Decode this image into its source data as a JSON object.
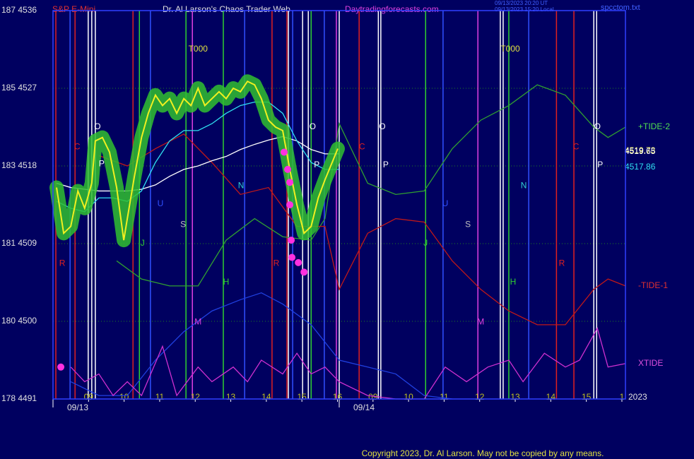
{
  "chart_data": {
    "type": "line",
    "instrument": "S&P E-Mini",
    "title": "Dr. Al Larson's Chaos Trader Web",
    "site": "Daytradingforecasts.com",
    "stamp_lines": [
      "09/13/2023 20:20 UT",
      "09/13/2023 15:20 Local"
    ],
    "file_name": "spcctom.txt",
    "year_label": "2023",
    "copyright": "Copyright 2023, Dr. Al Larson. May not be copied by any means.",
    "xlim": [
      0,
      16.1
    ],
    "ylim": [
      4491,
      4536
    ],
    "grid": true,
    "yticks": [
      {
        "value": 4536,
        "label": "187 4536"
      },
      {
        "value": 4527,
        "label": "185 4527"
      },
      {
        "value": 4518,
        "label": "183 4518"
      },
      {
        "value": 4509,
        "label": "181 4509"
      },
      {
        "value": 4500,
        "label": "180 4500"
      },
      {
        "value": 4491,
        "label": "178 4491"
      }
    ],
    "xticks": [
      {
        "value": 1,
        "label": "09"
      },
      {
        "value": 2,
        "label": "10"
      },
      {
        "value": 3,
        "label": "11"
      },
      {
        "value": 4,
        "label": "12"
      },
      {
        "value": 5,
        "label": "13"
      },
      {
        "value": 6,
        "label": "14"
      },
      {
        "value": 7,
        "label": "15"
      },
      {
        "value": 8,
        "label": "16"
      },
      {
        "value": 9,
        "label": "09"
      },
      {
        "value": 10,
        "label": "10"
      },
      {
        "value": 11,
        "label": "11"
      },
      {
        "value": 12,
        "label": "12"
      },
      {
        "value": 13,
        "label": "13"
      },
      {
        "value": 14,
        "label": "14"
      },
      {
        "value": 15,
        "label": "15"
      },
      {
        "value": 16,
        "label": "1"
      }
    ],
    "date_ticks": [
      {
        "value": 0,
        "label": "09/13"
      },
      {
        "value": 8.05,
        "label": "09/14"
      }
    ],
    "vlines": [
      {
        "x": 0.08,
        "color": "#e02020"
      },
      {
        "x": 0.62,
        "color": "#e02020"
      },
      {
        "x": 2.25,
        "color": "#e02020"
      },
      {
        "x": 6.16,
        "color": "#e02020"
      },
      {
        "x": 6.58,
        "color": "#e02020"
      },
      {
        "x": 8.61,
        "color": "#e02020"
      },
      {
        "x": 14.16,
        "color": "#e02020"
      },
      {
        "x": 14.65,
        "color": "#e02020"
      },
      {
        "x": 2.43,
        "color": "#30d030"
      },
      {
        "x": 3.74,
        "color": "#30d030"
      },
      {
        "x": 4.79,
        "color": "#30d030"
      },
      {
        "x": 7.26,
        "color": "#30d030"
      },
      {
        "x": 10.48,
        "color": "#30d030"
      },
      {
        "x": 12.82,
        "color": "#30d030"
      },
      {
        "x": 0.48,
        "color": "#3050ff"
      },
      {
        "x": 2.74,
        "color": "#3050ff"
      },
      {
        "x": 5.39,
        "color": "#3050ff"
      },
      {
        "x": 6.74,
        "color": "#3050ff"
      },
      {
        "x": 7.63,
        "color": "#3050ff"
      },
      {
        "x": 10.97,
        "color": "#3050ff"
      },
      {
        "x": 13.38,
        "color": "#3050ff"
      },
      {
        "x": 0.99,
        "color": "#ffffff"
      },
      {
        "x": 1.09,
        "color": "#ffffff"
      },
      {
        "x": 1.19,
        "color": "#ffffff"
      },
      {
        "x": 6.62,
        "color": "#ffffff"
      },
      {
        "x": 7.02,
        "color": "#ffffff"
      },
      {
        "x": 7.18,
        "color": "#ffffff"
      },
      {
        "x": 8.05,
        "color": "#ffffff"
      },
      {
        "x": 9.15,
        "color": "#ffffff"
      },
      {
        "x": 9.22,
        "color": "#ffffff"
      },
      {
        "x": 12.58,
        "color": "#ffffff"
      },
      {
        "x": 12.66,
        "color": "#ffffff"
      },
      {
        "x": 15.21,
        "color": "#ffffff"
      },
      {
        "x": 15.29,
        "color": "#ffffff"
      },
      {
        "x": 3.92,
        "color": "#e040e0"
      },
      {
        "x": 7.97,
        "color": "#e040e0"
      },
      {
        "x": 11.95,
        "color": "#e040e0"
      }
    ],
    "letters": [
      {
        "label": "C",
        "x": 0.68,
        "y": 4520.2,
        "color": "#e02020"
      },
      {
        "label": "O",
        "x": 1.25,
        "y": 4522.5,
        "color": "#ffffff"
      },
      {
        "label": "P",
        "x": 1.37,
        "y": 4518.2,
        "color": "#ffffff"
      },
      {
        "label": "U",
        "x": 3.02,
        "y": 4513.6,
        "color": "#3050ff"
      },
      {
        "label": "S",
        "x": 3.66,
        "y": 4511.2,
        "color": "#c0c0c0"
      },
      {
        "label": "J",
        "x": 2.52,
        "y": 4509.0,
        "color": "#30d030"
      },
      {
        "label": "H",
        "x": 4.87,
        "y": 4504.5,
        "color": "#30d030"
      },
      {
        "label": "M",
        "x": 4.08,
        "y": 4499.9,
        "color": "#e040e0"
      },
      {
        "label": "N",
        "x": 5.29,
        "y": 4515.7,
        "color": "#30d0d0"
      },
      {
        "label": "R",
        "x": 0.26,
        "y": 4506.7,
        "color": "#e02020"
      },
      {
        "label": "R",
        "x": 6.28,
        "y": 4506.7,
        "color": "#e02020"
      },
      {
        "label": "O",
        "x": 7.3,
        "y": 4522.5,
        "color": "#ffffff"
      },
      {
        "label": "P",
        "x": 7.42,
        "y": 4518.1,
        "color": "#ffffff"
      },
      {
        "label": "C",
        "x": 8.69,
        "y": 4520.2,
        "color": "#e02020"
      },
      {
        "label": "O",
        "x": 9.26,
        "y": 4522.5,
        "color": "#ffffff"
      },
      {
        "label": "P",
        "x": 9.36,
        "y": 4518.1,
        "color": "#ffffff"
      },
      {
        "label": "U",
        "x": 11.03,
        "y": 4513.6,
        "color": "#3050ff"
      },
      {
        "label": "S",
        "x": 11.67,
        "y": 4511.2,
        "color": "#c0c0c0"
      },
      {
        "label": "J",
        "x": 10.48,
        "y": 4509.0,
        "color": "#30d030"
      },
      {
        "label": "H",
        "x": 12.94,
        "y": 4504.5,
        "color": "#30d030"
      },
      {
        "label": "M",
        "x": 12.03,
        "y": 4499.9,
        "color": "#e040e0"
      },
      {
        "label": "N",
        "x": 13.24,
        "y": 4515.7,
        "color": "#30d0d0"
      },
      {
        "label": "R",
        "x": 14.31,
        "y": 4506.7,
        "color": "#e02020"
      },
      {
        "label": "C",
        "x": 14.71,
        "y": 4520.2,
        "color": "#e02020"
      },
      {
        "label": "O",
        "x": 15.31,
        "y": 4522.5,
        "color": "#ffffff"
      },
      {
        "label": "P",
        "x": 15.39,
        "y": 4518.1,
        "color": "#ffffff"
      },
      {
        "label": "T000",
        "x": 4.08,
        "y": 4531.5,
        "color": "#e0e040"
      },
      {
        "label": "T000",
        "x": 12.86,
        "y": 4531.5,
        "color": "#e0e040"
      }
    ],
    "series": [
      {
        "color": "#30a030",
        "x": [
          1.79,
          2.49,
          3.28,
          4.08,
          4.87,
          5.67,
          6.46,
          7.26,
          7.65,
          8.05,
          8.85,
          9.64,
          10.44,
          11.23,
          12.03,
          12.82,
          13.62,
          14.41,
          15.21,
          15.61,
          16.1
        ],
        "name": "+TIDE-2",
        "label_color": "#50e050",
        "values": [
          4507.0,
          4504.9,
          4504.1,
          4504.1,
          4509.4,
          4511.9,
          4509.8,
          4509.4,
          4511.9,
          4522.9,
          4516.0,
          4514.7,
          4515.1,
          4520.0,
          4523.3,
          4525.0,
          4527.4,
          4526.2,
          4522.5,
          4521.3,
          4522.5
        ]
      },
      {
        "color": "#c01818",
        "x": [
          1.29,
          2.09,
          2.88,
          3.68,
          4.47,
          5.27,
          6.06,
          6.86,
          7.65,
          8.05,
          8.85,
          9.64,
          10.44,
          11.23,
          12.03,
          12.82,
          13.62,
          14.41,
          15.21,
          15.61,
          16.1
        ],
        "name": "-TIDE-1",
        "label_color": "#e03030",
        "values": [
          4519.2,
          4518.0,
          4520.0,
          4521.7,
          4518.4,
          4514.7,
          4515.5,
          4511.0,
          4511.0,
          4503.7,
          4510.2,
          4511.9,
          4511.5,
          4507.0,
          4503.7,
          4501.2,
          4499.6,
          4499.6,
          4503.7,
          4504.9,
          4504.1
        ]
      },
      {
        "color": "#2040e0",
        "x": [
          0.5,
          1.29,
          2.09,
          2.88,
          3.68,
          4.47,
          5.27,
          5.86,
          6.46,
          7.26,
          8.05,
          8.85,
          9.64,
          10.44,
          11.23
        ],
        "values": [
          4493.0,
          4491.4,
          4491.4,
          4495.5,
          4498.8,
          4501.2,
          4502.5,
          4503.3,
          4502.0,
          4499.6,
          4495.5,
          4494.7,
          4493.9,
          4491.4,
          4491.0
        ]
      },
      {
        "color": "#d030d0",
        "x": [
          0.5,
          0.89,
          1.29,
          1.69,
          2.09,
          2.49,
          3.08,
          3.48,
          4.08,
          4.47,
          5.07,
          5.47,
          5.86,
          6.46,
          6.86,
          7.26,
          7.65,
          8.05,
          8.85,
          9.64,
          10.44,
          11.03,
          11.63,
          12.23,
          12.82,
          13.22,
          13.82,
          14.41,
          14.81,
          15.31,
          15.61,
          16.1
        ],
        "name": "XTIDE",
        "label_color": "#e050e0",
        "values": [
          4494.7,
          4493.0,
          4493.9,
          4491.4,
          4493.0,
          4491.4,
          4497.1,
          4491.4,
          4494.7,
          4493.0,
          4494.7,
          4493.0,
          4495.5,
          4493.9,
          4496.3,
          4493.9,
          4494.7,
          4493.0,
          4491.4,
          4491.0,
          4491.0,
          4494.7,
          4493.0,
          4494.7,
          4495.5,
          4493.0,
          4496.3,
          4494.7,
          4495.5,
          4499.2,
          4494.7,
          4495.1
        ]
      },
      {
        "color": "#ffffff",
        "x": [
          0.1,
          0.5,
          0.89,
          1.29,
          1.69,
          2.09,
          2.49,
          2.88,
          3.28,
          3.68,
          4.08,
          4.47,
          4.87,
          5.27,
          5.67,
          6.06,
          6.46,
          6.86,
          7.26,
          7.65,
          8.05
        ],
        "values": [
          4516.0,
          4515.5,
          4515.3,
          4515.1,
          4515.1,
          4515.1,
          4515.3,
          4515.8,
          4516.8,
          4517.6,
          4518.0,
          4518.6,
          4519.1,
          4519.9,
          4520.5,
          4521.0,
          4521.4,
          4520.9,
          4519.9,
          4519.4,
          4519.4
        ]
      },
      {
        "color": "#30e0f0",
        "x": [
          0.1,
          0.5,
          0.89,
          1.29,
          1.69,
          2.09,
          2.49,
          2.88,
          3.28,
          3.68,
          4.08,
          4.47,
          4.87,
          5.27,
          5.67,
          6.06,
          6.46,
          6.86,
          7.26,
          7.65,
          8.05
        ],
        "values": [
          4513.9,
          4513.1,
          4512.7,
          4514.3,
          4514.3,
          4513.9,
          4515.1,
          4518.4,
          4520.9,
          4522.1,
          4522.1,
          4522.9,
          4524.1,
          4525.0,
          4525.4,
          4525.4,
          4524.1,
          4520.9,
          4518.4,
          4517.6,
          4517.6
        ]
      },
      {
        "color": "#f0f020",
        "halo_color": "#30c030",
        "x": [
          0.1,
          0.3,
          0.5,
          0.7,
          0.89,
          1.09,
          1.19,
          1.39,
          1.59,
          1.79,
          1.99,
          2.09,
          2.29,
          2.49,
          2.68,
          2.88,
          3.08,
          3.28,
          3.48,
          3.68,
          3.88,
          4.08,
          4.27,
          4.47,
          4.67,
          4.87,
          5.07,
          5.27,
          5.47,
          5.67,
          5.86,
          6.06,
          6.26,
          6.46,
          6.66,
          6.86,
          7.06,
          7.26,
          7.46,
          7.65,
          7.85,
          8.01
        ],
        "values": [
          4515.5,
          4510.2,
          4511.0,
          4515.1,
          4513.1,
          4516.0,
          4520.9,
          4521.3,
          4519.6,
          4515.5,
          4509.4,
          4511.9,
          4516.8,
          4521.3,
          4524.1,
          4526.2,
          4525.0,
          4525.8,
          4524.1,
          4525.8,
          4525.0,
          4527.0,
          4525.0,
          4525.8,
          4526.6,
          4525.8,
          4527.0,
          4526.6,
          4527.8,
          4527.4,
          4525.8,
          4523.3,
          4522.5,
          4522.1,
          4517.6,
          4513.5,
          4510.2,
          4511.0,
          4514.3,
          4516.4,
          4518.4,
          4520.0
        ]
      }
    ],
    "dots": {
      "color": "#ff30e0",
      "x": [
        6.5,
        6.6,
        6.66,
        6.66,
        6.7,
        6.72,
        6.9,
        7.06,
        0.22
      ],
      "values": [
        4519.6,
        4517.6,
        4516.1,
        4513.5,
        4509.4,
        4507.4,
        4506.8,
        4505.7,
        4494.7
      ]
    },
    "last_values": [
      {
        "value": 4519.73,
        "color": "#ffff60"
      },
      {
        "value": 4519.65,
        "color": "#ffffff"
      },
      {
        "value": 4517.86,
        "color": "#30e0f0"
      }
    ]
  }
}
